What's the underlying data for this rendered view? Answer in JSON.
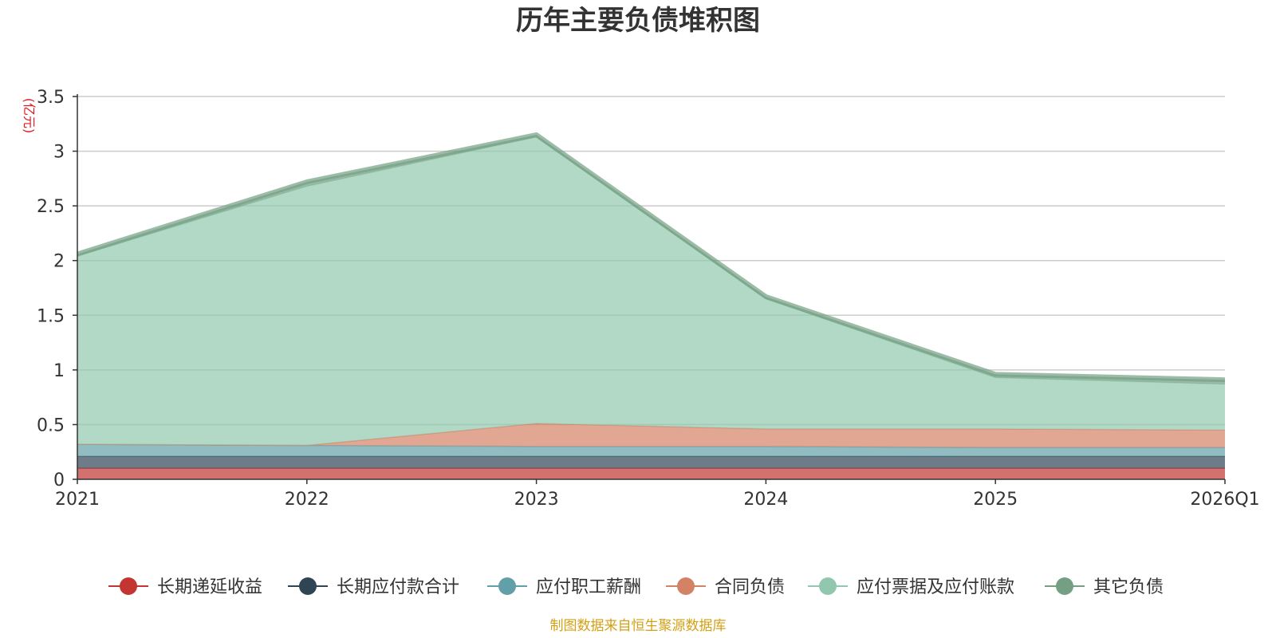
{
  "chart_data": {
    "type": "area",
    "stacked": true,
    "title": "历年主要负债堆积图",
    "unit_label": "(亿元)",
    "source_note": "制图数据来自恒生聚源数据库",
    "categories": [
      "2021",
      "2022",
      "2023",
      "2024",
      "2025",
      "2026Q1"
    ],
    "ylim": [
      0,
      3.5
    ],
    "yticks": [
      0,
      0.5,
      1,
      1.5,
      2,
      2.5,
      3,
      3.5
    ],
    "ytick_labels": [
      "0",
      "0.5",
      "1",
      "1.5",
      "2",
      "2.5",
      "3",
      "3.5"
    ],
    "grid": true,
    "legend_position": "bottom",
    "series": [
      {
        "name": "长期递延收益",
        "color": "#c23531",
        "values": [
          0.1,
          0.1,
          0.1,
          0.1,
          0.1,
          0.1
        ]
      },
      {
        "name": "长期应付款合计",
        "color": "#2f4554",
        "values": [
          0.11,
          0.11,
          0.11,
          0.11,
          0.11,
          0.11
        ]
      },
      {
        "name": "应付职工薪酬",
        "color": "#61a0a8",
        "values": [
          0.11,
          0.1,
          0.09,
          0.09,
          0.08,
          0.08
        ]
      },
      {
        "name": "合同负债",
        "color": "#d48265",
        "values": [
          0.0,
          0.0,
          0.21,
          0.16,
          0.17,
          0.16
        ]
      },
      {
        "name": "应付票据及应付账款",
        "color": "#91c7ae",
        "values": [
          1.72,
          2.37,
          2.62,
          1.19,
          0.47,
          0.42
        ]
      },
      {
        "name": "其它负债",
        "color": "#749f83",
        "values": [
          0.02,
          0.04,
          0.02,
          0.02,
          0.03,
          0.04
        ]
      }
    ]
  }
}
